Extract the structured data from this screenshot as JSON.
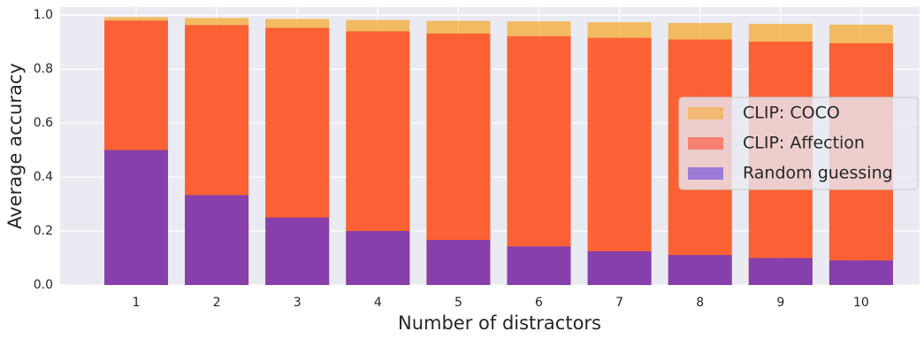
{
  "chart_data": {
    "type": "overlaid_bar",
    "x_label": "Number of distractors",
    "y_label": "Average accuracy",
    "categories": [
      "1",
      "2",
      "3",
      "4",
      "5",
      "6",
      "7",
      "8",
      "9",
      "10"
    ],
    "series": [
      {
        "name": "CLIP: COCO",
        "color": "#f5a623",
        "values": [
          0.993,
          0.99,
          0.986,
          0.982,
          0.979,
          0.977,
          0.974,
          0.971,
          0.968,
          0.965
        ]
      },
      {
        "name": "CLIP: Affection",
        "color": "#ff3b22",
        "values": [
          0.98,
          0.963,
          0.953,
          0.94,
          0.932,
          0.922,
          0.916,
          0.91,
          0.902,
          0.896
        ]
      },
      {
        "name": "Random guessing",
        "color": "#5530e0",
        "values": [
          0.5,
          0.333,
          0.25,
          0.2,
          0.167,
          0.143,
          0.125,
          0.111,
          0.1,
          0.091
        ]
      }
    ],
    "alpha": 0.7,
    "ylim": [
      0,
      1.03
    ],
    "yticks": [
      {
        "value": 0,
        "label": "0.0"
      },
      {
        "value": 0.2,
        "label": "0.2"
      },
      {
        "value": 0.4,
        "label": "0.4"
      },
      {
        "value": 0.6,
        "label": "0.6"
      },
      {
        "value": 0.8,
        "label": "0.8"
      },
      {
        "value": 1,
        "label": "1.0"
      }
    ],
    "grid": true,
    "legend": "center right"
  }
}
